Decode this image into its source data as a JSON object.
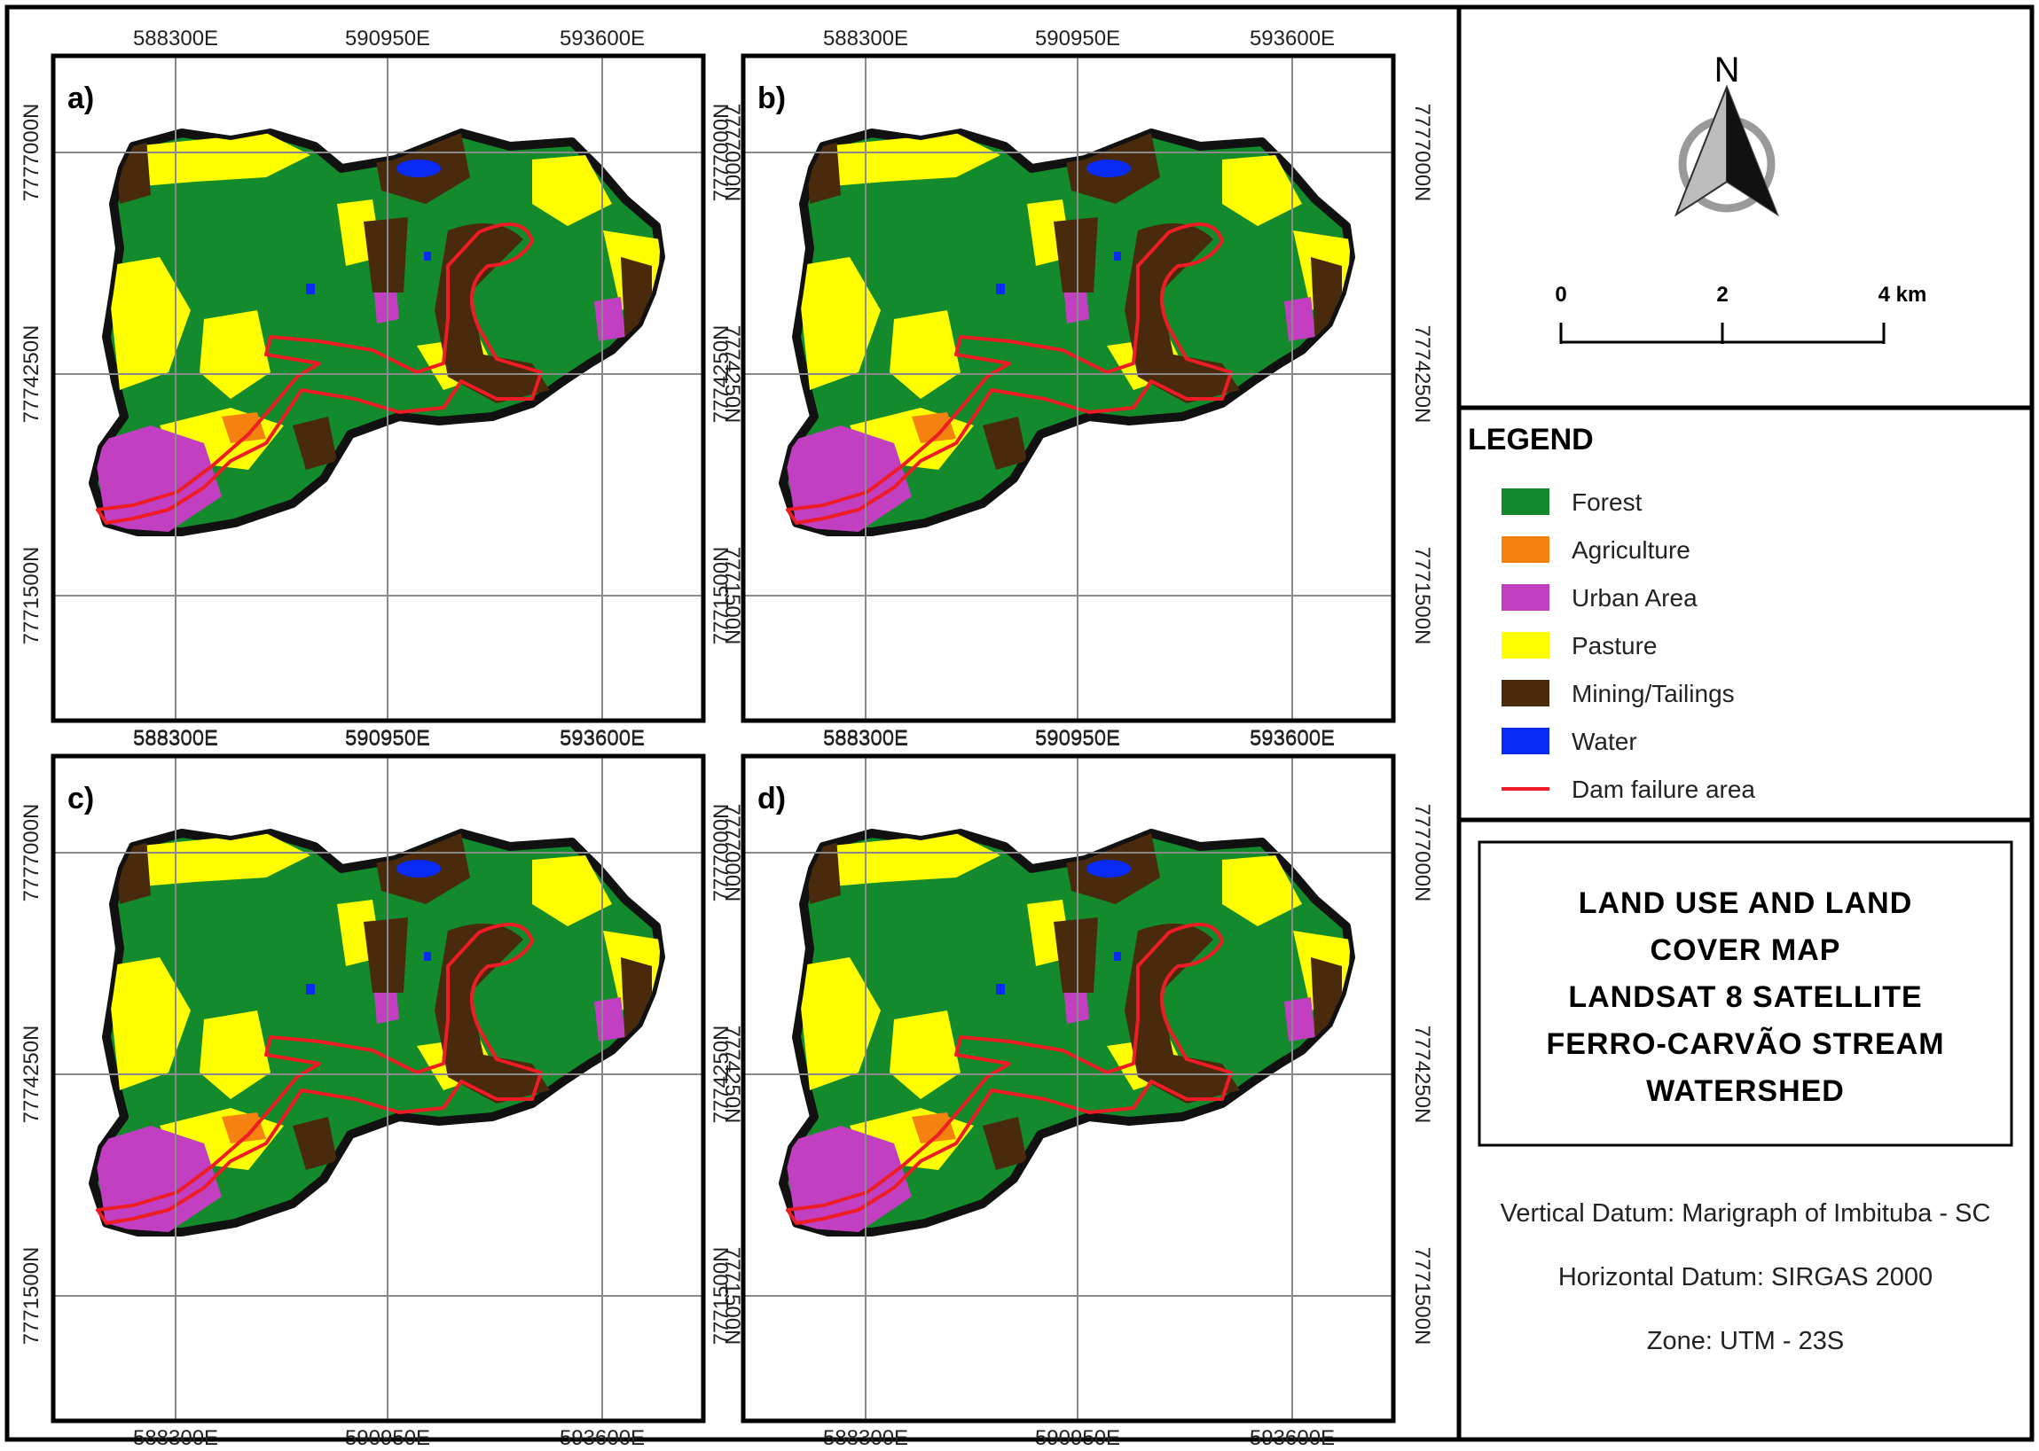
{
  "panels": [
    {
      "id": "a",
      "label": "a)"
    },
    {
      "id": "b",
      "label": "b)"
    },
    {
      "id": "c",
      "label": "c)"
    },
    {
      "id": "d",
      "label": "d)"
    }
  ],
  "grid": {
    "easting": [
      "588300E",
      "590950E",
      "593600E"
    ],
    "northing": [
      "7777000N",
      "7774250N",
      "7771500N"
    ]
  },
  "north_arrow": {
    "label": "N"
  },
  "scale_bar": {
    "labels": [
      "0",
      "2",
      "4 km"
    ]
  },
  "legend": {
    "title": "LEGEND",
    "items": [
      {
        "label": "Forest",
        "color": "#138a2b"
      },
      {
        "label": "Agriculture",
        "color": "#f5820f"
      },
      {
        "label": "Urban Area",
        "color": "#c13fc0"
      },
      {
        "label": "Pasture",
        "color": "#ffff00"
      },
      {
        "label": "Mining/Tailings",
        "color": "#4a2a0d"
      },
      {
        "label": "Water",
        "color": "#0a2bf5"
      },
      {
        "label": "Dam failure area",
        "color": "#ee1c24"
      }
    ]
  },
  "map_title": {
    "lines": [
      "LAND USE AND LAND",
      "COVER MAP",
      "LANDSAT 8 SATELLITE",
      "FERRO-CARVÃO STREAM",
      "WATERSHED"
    ]
  },
  "datum": {
    "vertical": "Vertical Datum: Marigraph of Imbituba - SC",
    "horizontal": "Horizontal Datum: SIRGAS 2000",
    "zone": "Zone: UTM - 23S"
  }
}
